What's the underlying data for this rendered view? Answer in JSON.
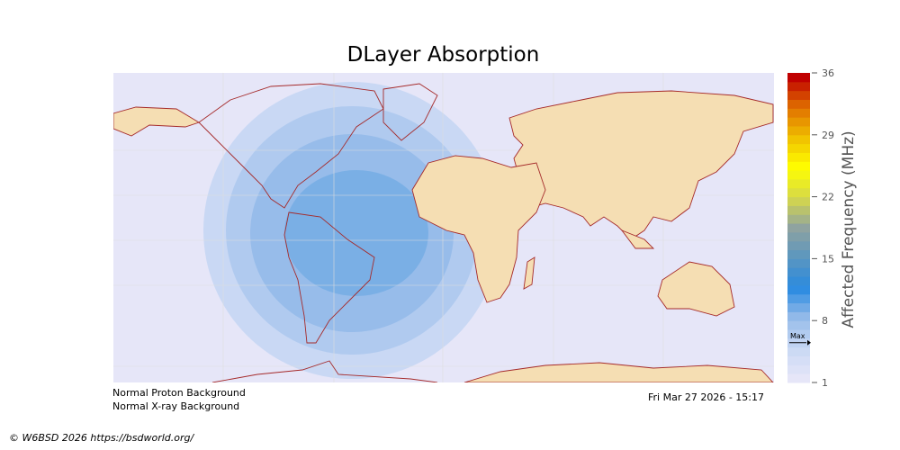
{
  "title": "DLayer Absorption",
  "colorbar": {
    "label": "Affected Frequency (MHz)",
    "min": 1,
    "max": 36,
    "ticks": [
      "36",
      "29",
      "22",
      "15",
      "8",
      "1"
    ],
    "max_marker_label": "Max",
    "max_marker_value": 5.5,
    "color_stops": [
      "#e6e6f8",
      "#c9d8f4",
      "#97bcea",
      "#2a8ae0",
      "#5a96c0",
      "#8fa3a0",
      "#d6d84a",
      "#ffff00",
      "#f0c000",
      "#e07000",
      "#c00000"
    ]
  },
  "map": {
    "ocean_color": "#e6e6f8",
    "land_color": "#f5deb3",
    "coast_color": "#a52a2a",
    "absorption_levels": [
      "#c9d8f4",
      "#b0caef",
      "#97bcea",
      "#7aafe5"
    ]
  },
  "notes": {
    "proton": "Normal Proton Background",
    "xray": "Normal X-ray Background",
    "timestamp": "Fri Mar 27 2026 - 15:17"
  },
  "footer": {
    "copyright": "© W6BSD 2026 https://bsdworld.org/"
  }
}
